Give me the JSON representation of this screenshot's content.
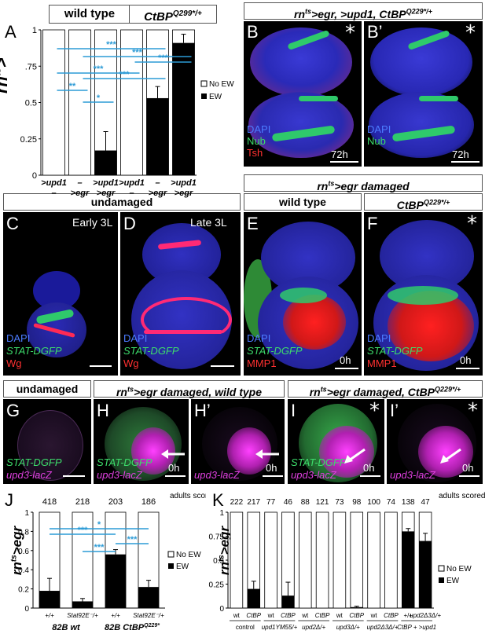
{
  "figure": {
    "panels": {
      "A": {
        "label": "A",
        "header_wt": "wild type",
        "header_ctbp": "CtBP",
        "header_ctbp_sup": "Q299*/+",
        "ylabel": "rn",
        "ylabel_sup": "ts",
        "ylabel_suffix": ">",
        "legend": [
          "No EW",
          "EW"
        ],
        "row1": [
          ">upd1",
          "–",
          ">upd1",
          ">upd1",
          "–",
          ">upd1"
        ],
        "row2": [
          "–",
          ">egr",
          ">egr",
          "–",
          ">egr",
          ">egr"
        ],
        "sig": [
          "**",
          "*",
          "***",
          "***",
          "***",
          "***",
          "***"
        ]
      },
      "B": {
        "label": "B",
        "label2": "B’",
        "header": "rn",
        "header_sup": "ts",
        "header_rest": ">egr, >upd1, CtBP",
        "header_sup2": "Q229*/+",
        "dapi": "DAPI",
        "nub": "Nub",
        "tsh": "Tsh",
        "time": "72h"
      },
      "C": {
        "label": "C",
        "tag": "Early 3L",
        "dapi": "DAPI",
        "stat": "STAT-DGFP",
        "wg": "Wg"
      },
      "D": {
        "label": "D",
        "tag": "Late 3L",
        "dapi": "DAPI",
        "stat": "STAT-DGFP",
        "wg": "Wg"
      },
      "E": {
        "label": "E",
        "dapi": "DAPI",
        "stat": "STAT-DGFP",
        "mmp": "MMP1",
        "time": "0h"
      },
      "F": {
        "label": "F",
        "dapi": "DAPI",
        "stat": "STAT-DGFP",
        "mmp": "MMP1",
        "time": "0h"
      },
      "CF_headers": {
        "undamaged": "undamaged",
        "damaged_pre": "rn",
        "damaged_sup": "ts",
        "damaged_rest": ">egr damaged",
        "wt": "wild type",
        "ctbp": "CtBP",
        "ctbp_sup": "Q229*/+"
      },
      "G": {
        "label": "G",
        "header_undamaged": "undamaged",
        "stat": "STAT-DGFP",
        "upd": "upd3-lacZ"
      },
      "H": {
        "label": "H",
        "label2": "H’",
        "header_pre": "rn",
        "header_sup": "ts",
        "header_rest": ">egr damaged, wild type",
        "stat": "STAT-DGFP",
        "upd": "upd3-lacZ",
        "time": "0h"
      },
      "I": {
        "label": "I",
        "label2": "I’",
        "header_pre": "rn",
        "header_sup": "ts",
        "header_rest": ">egr damaged, CtBP",
        "header_sup2": "Q229*/+",
        "stat": "STAT-DGFP",
        "upd": "upd3-lacZ",
        "time": "0h"
      },
      "J": {
        "label": "J",
        "ylabel_pre": "rn",
        "ylabel_sup": "ts",
        "ylabel_rest": ">egr",
        "genotypes": [
          "+/+",
          "Stat92E⁻/+",
          "+/+",
          "Stat92E⁻/+"
        ],
        "groups": [
          "82B wt",
          "82B CtBP"
        ],
        "group2_sup": "Q229*",
        "adults_scored_label": "adults scored",
        "sig": [
          "***",
          "*",
          "***",
          "***"
        ]
      },
      "K": {
        "label": "K",
        "ylabel_pre": "rn",
        "ylabel_sup": "ts",
        "ylabel_rest": ">egr",
        "bar_labels": [
          "wt",
          "CtBP",
          "wt",
          "CtBP",
          "wt",
          "CtBP",
          "wt",
          "CtBP",
          "wt",
          "CtBP",
          "+/+",
          "upd2Δ3Δ/+"
        ],
        "groups": [
          "control",
          "upd1YM55/+",
          "upd2Δ/+",
          "upd3Δ/+",
          "upd2Δ3Δ/+",
          "CtBP + >upd1"
        ],
        "adults_scored_label": "adults scored"
      }
    }
  },
  "chart_data": [
    {
      "type": "bar",
      "panel": "A",
      "title": "",
      "categories": [
        ">upd1 / – (wt)",
        "– / >egr (wt)",
        ">upd1 / >egr (wt)",
        ">upd1 / – (CtBP)",
        "– / >egr (CtBP)",
        ">upd1 / >egr (CtBP)"
      ],
      "series": [
        {
          "name": "EW",
          "values": [
            0,
            0,
            0.17,
            0,
            0.53,
            0.91
          ],
          "errors": [
            0,
            0,
            0.13,
            0,
            0.08,
            0.06
          ]
        },
        {
          "name": "No EW",
          "values": [
            1,
            1,
            0.83,
            1,
            0.47,
            0.09
          ]
        }
      ],
      "ylim": [
        0,
        1
      ],
      "yticks": [
        "0",
        "0.25",
        "0.5",
        ".75",
        "1"
      ],
      "stacked": true
    },
    {
      "type": "bar",
      "panel": "J",
      "categories": [
        "82B wt +/+",
        "82B wt Stat92E-/+",
        "82B CtBP +/+",
        "82B CtBP Stat92E-/+"
      ],
      "adults_scored": [
        418,
        218,
        203,
        186
      ],
      "series": [
        {
          "name": "EW",
          "values": [
            0.18,
            0.07,
            0.56,
            0.22
          ],
          "errors": [
            0.13,
            0.03,
            0.05,
            0.07
          ]
        },
        {
          "name": "No EW",
          "values": [
            0.82,
            0.93,
            0.44,
            0.78
          ]
        }
      ],
      "ylim": [
        0,
        1
      ],
      "yticks": [
        "0",
        "0.2",
        "0.4",
        "0.6",
        "0.8",
        "1"
      ],
      "stacked": true
    },
    {
      "type": "bar",
      "panel": "K",
      "categories": [
        "control wt",
        "control CtBP",
        "upd1 wt",
        "upd1 CtBP",
        "upd2 wt",
        "upd2 CtBP",
        "upd3 wt",
        "upd3 CtBP",
        "upd2/3 wt",
        "upd2/3 CtBP",
        "CtBP+>upd1 +/+",
        "CtBP+>upd1 upd2/3"
      ],
      "adults_scored": [
        222,
        217,
        77,
        46,
        88,
        121,
        73,
        98,
        100,
        74,
        138,
        47
      ],
      "series": [
        {
          "name": "EW",
          "values": [
            0,
            0.2,
            0,
            0.13,
            0,
            0,
            0,
            0.01,
            0,
            0,
            0.8,
            0.7
          ],
          "errors": [
            0,
            0.08,
            0,
            0.14,
            0,
            0,
            0,
            0.01,
            0,
            0,
            0.03,
            0.08
          ]
        },
        {
          "name": "No EW",
          "values": [
            1,
            0.8,
            1,
            0.87,
            1,
            1,
            1,
            0.99,
            1,
            1,
            0.2,
            0.3
          ]
        }
      ],
      "ylim": [
        0,
        1
      ],
      "yticks": [
        "0",
        "0.25",
        "0.5",
        "0.75",
        "1"
      ],
      "stacked": true
    }
  ]
}
